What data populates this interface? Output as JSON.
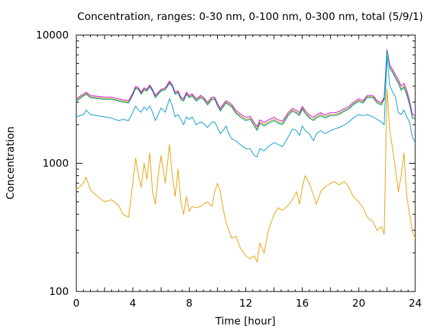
{
  "chart_data": {
    "type": "line",
    "title": "Concentration, ranges: 0-30 nm, 0-100 nm, 0-300 nm, total (5/9/1)",
    "xlabel": "Time [hour]",
    "ylabel": "Concentration",
    "xlim": [
      0,
      24
    ],
    "ylim": [
      100,
      10000
    ],
    "yscale": "log",
    "grid": false,
    "xticks": [
      "0",
      "4",
      "8",
      "12",
      "16",
      "20",
      "24"
    ],
    "yticks": [
      "100",
      "1000",
      "10000"
    ],
    "x": [
      0,
      0.5,
      0.7,
      1,
      1.5,
      2,
      2.5,
      3,
      3.3,
      3.7,
      4,
      4.2,
      4.4,
      4.6,
      4.8,
      5,
      5.2,
      5.4,
      5.6,
      5.8,
      6,
      6.3,
      6.6,
      6.8,
      7,
      7.2,
      7.4,
      7.6,
      7.8,
      8,
      8.2,
      8.5,
      8.8,
      9,
      9.3,
      9.6,
      9.8,
      10,
      10.2,
      10.4,
      10.6,
      10.8,
      11,
      11.3,
      11.6,
      12,
      12.3,
      12.6,
      12.8,
      13,
      13.3,
      13.6,
      14,
      14.3,
      14.6,
      15,
      15.3,
      15.6,
      15.8,
      16,
      16.2,
      16.5,
      16.8,
      17,
      17.3,
      17.6,
      18,
      18.3,
      18.6,
      19,
      19.3,
      19.6,
      20,
      20.3,
      20.6,
      21,
      21.3,
      21.6,
      21.8,
      22,
      22.2,
      22.4,
      22.6,
      22.8,
      23,
      23.2,
      23.4,
      23.6,
      23.8,
      24
    ],
    "series": [
      {
        "color": "#a0a000",
        "values": [
          3100,
          3400,
          3500,
          3300,
          3250,
          3200,
          3200,
          3100,
          3050,
          3000,
          3450,
          3900,
          3800,
          3500,
          3800,
          3700,
          4000,
          3700,
          3300,
          3500,
          3700,
          3800,
          4300,
          4000,
          3500,
          3600,
          3200,
          3100,
          3500,
          3300,
          3400,
          3100,
          3300,
          3200,
          2900,
          3200,
          3200,
          2850,
          2600,
          2800,
          3000,
          2900,
          2800,
          2500,
          2350,
          2200,
          2250,
          2000,
          1850,
          2100,
          2000,
          2100,
          2200,
          2100,
          2050,
          2400,
          2600,
          2500,
          2400,
          2700,
          2500,
          2300,
          2200,
          2300,
          2400,
          2300,
          2400,
          2400,
          2450,
          2600,
          2700,
          2900,
          3100,
          3000,
          3300,
          3300,
          3000,
          2900,
          3200,
          7500,
          5600,
          5200,
          4700,
          4300,
          3800,
          4000,
          3500,
          2900,
          2300,
          2250
        ]
      },
      {
        "color": "#cc00cc",
        "values": [
          3180,
          3480,
          3580,
          3380,
          3330,
          3280,
          3280,
          3180,
          3130,
          3080,
          3530,
          3980,
          3880,
          3580,
          3880,
          3780,
          4080,
          3780,
          3380,
          3580,
          3780,
          3880,
          4380,
          4080,
          3580,
          3680,
          3280,
          3180,
          3580,
          3380,
          3480,
          3180,
          3380,
          3280,
          2980,
          3280,
          3280,
          2930,
          2680,
          2880,
          3080,
          2980,
          2880,
          2580,
          2430,
          2280,
          2330,
          2080,
          1930,
          2180,
          2080,
          2180,
          2280,
          2180,
          2130,
          2480,
          2680,
          2580,
          2480,
          2780,
          2580,
          2380,
          2280,
          2380,
          2480,
          2380,
          2480,
          2480,
          2530,
          2680,
          2780,
          2980,
          3180,
          3080,
          3380,
          3380,
          3080,
          2980,
          3280,
          7700,
          5800,
          5400,
          4900,
          4500,
          4000,
          4200,
          3700,
          3050,
          2400,
          2350
        ]
      },
      {
        "color": "#009999",
        "values": [
          3050,
          3350,
          3450,
          3250,
          3200,
          3150,
          3150,
          3050,
          3000,
          2950,
          3400,
          3850,
          3750,
          3450,
          3750,
          3650,
          3950,
          3650,
          3250,
          3450,
          3650,
          3750,
          4200,
          3950,
          3450,
          3550,
          3150,
          3050,
          3450,
          3250,
          3350,
          3050,
          3250,
          3150,
          2850,
          3150,
          3150,
          2800,
          2550,
          2750,
          2950,
          2850,
          2750,
          2450,
          2300,
          2150,
          2200,
          1950,
          1800,
          2050,
          1950,
          2050,
          2150,
          2050,
          2000,
          2350,
          2550,
          2450,
          2350,
          2650,
          2450,
          2250,
          2150,
          2250,
          2350,
          2250,
          2350,
          2350,
          2400,
          2550,
          2650,
          2850,
          3050,
          2950,
          3250,
          3250,
          2950,
          2850,
          3150,
          7600,
          5500,
          5100,
          4600,
          4200,
          3700,
          3900,
          3400,
          2850,
          2250,
          2200
        ]
      },
      {
        "color": "#0099cc",
        "values": [
          2300,
          2400,
          2600,
          2400,
          2350,
          2300,
          2250,
          2150,
          2200,
          2150,
          2500,
          2800,
          2600,
          2500,
          2750,
          2600,
          2800,
          2500,
          2150,
          2400,
          2700,
          2500,
          3200,
          2800,
          2300,
          2400,
          2200,
          2000,
          2300,
          2200,
          2300,
          2000,
          2100,
          2050,
          1900,
          2100,
          2100,
          1900,
          1700,
          1800,
          1950,
          1700,
          1550,
          1500,
          1400,
          1300,
          1300,
          1150,
          1120,
          1300,
          1250,
          1350,
          1450,
          1400,
          1350,
          1600,
          1850,
          1800,
          1650,
          1950,
          1800,
          1700,
          1500,
          1700,
          1800,
          1700,
          1800,
          1850,
          1900,
          2000,
          2100,
          2250,
          2400,
          2350,
          2400,
          2300,
          2200,
          2100,
          2000,
          6800,
          4000,
          3600,
          3300,
          2500,
          2400,
          2600,
          2300,
          2100,
          1600,
          1450
        ]
      },
      {
        "color": "#e69f00",
        "values": [
          620,
          700,
          780,
          620,
          550,
          500,
          520,
          470,
          400,
          380,
          700,
          1100,
          800,
          650,
          1000,
          750,
          1200,
          600,
          480,
          800,
          1150,
          700,
          1400,
          800,
          550,
          900,
          500,
          400,
          550,
          420,
          460,
          450,
          460,
          480,
          500,
          460,
          600,
          700,
          600,
          440,
          350,
          300,
          260,
          270,
          220,
          190,
          180,
          190,
          170,
          240,
          200,
          300,
          400,
          450,
          430,
          470,
          520,
          600,
          480,
          650,
          800,
          700,
          560,
          480,
          600,
          650,
          700,
          720,
          680,
          720,
          650,
          550,
          500,
          450,
          380,
          350,
          300,
          320,
          280,
          3800,
          1800,
          1300,
          900,
          600,
          800,
          1200,
          550,
          400,
          290,
          260
        ]
      }
    ]
  }
}
